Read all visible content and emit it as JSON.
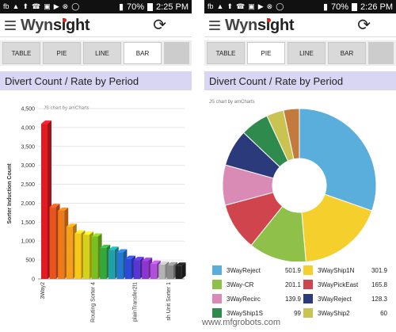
{
  "left": {
    "status": {
      "icons": [
        "fb",
        "▲",
        "⬆",
        "☎",
        "▣",
        "▶",
        "⊗",
        "◯"
      ],
      "battery": "70%",
      "time": "2:25 PM"
    },
    "logo": {
      "a": "Wyn",
      "b": "sight"
    },
    "tabs": [
      "TABLE",
      "PIE",
      "LINE",
      "BAR"
    ],
    "active_tab": "BAR",
    "title": "Divert Count / Rate by Period",
    "chart_data": {
      "type": "bar",
      "subtitle": "JS chart by amCharts",
      "ylabel": "Sorter Induction Count",
      "ylim": [
        0,
        4500
      ],
      "y_ticks": [
        "0",
        "500",
        "1,000",
        "1,500",
        "2,000",
        "2,500",
        "3,000",
        "3,500",
        "4,000",
        "4,500"
      ],
      "x_labels": [
        "3Way2",
        "Routing Sorter 4",
        "plainTransfer2l1",
        "sh Unit Sorter 1"
      ],
      "values": [
        4100,
        1900,
        1800,
        1380,
        1200,
        1170,
        1120,
        820,
        770,
        700,
        530,
        500,
        480,
        400,
        380,
        360,
        350
      ],
      "colors": [
        "#e01b24",
        "#e8551c",
        "#ee7b1a",
        "#f4a01a",
        "#f8c81c",
        "#d6d21c",
        "#7bbe1f",
        "#34a83a",
        "#1ea1a8",
        "#2577cf",
        "#2c4bd6",
        "#5a35d2",
        "#8e35d0",
        "#b24fd9",
        "#b3b3b3",
        "#8a8a8a",
        "#222222"
      ]
    }
  },
  "right": {
    "status": {
      "icons": [
        "fb",
        "▲",
        "⬆",
        "☎",
        "▣",
        "▶",
        "⊗",
        "◯"
      ],
      "battery": "70%",
      "time": "2:26 PM"
    },
    "logo": {
      "a": "Wyn",
      "b": "sight"
    },
    "tabs": [
      "TABLE",
      "PIE",
      "LINE",
      "BAR"
    ],
    "active_tab": "PIE",
    "title": "Divert Count / Rate by Period",
    "chart_data": {
      "type": "pie",
      "subtitle": "JS chart by amCharts",
      "slices": [
        {
          "name": "3WayReject",
          "value": 501.9,
          "color": "#5aaedc"
        },
        {
          "name": "3WayShip1N",
          "value": 301.9,
          "color": "#f5cf2c"
        },
        {
          "name": "3Way-CR",
          "value": 201.1,
          "color": "#8fc14a"
        },
        {
          "name": "3WayPickEast",
          "value": 165.8,
          "color": "#d0454d"
        },
        {
          "name": "3WayRecirc",
          "value": 139.9,
          "color": "#d98ab5"
        },
        {
          "name": "3WayReject",
          "value": 128.3,
          "color": "#2b3a7a"
        },
        {
          "name": "3WayShip1S",
          "value": 99,
          "color": "#2f8a4d"
        },
        {
          "name": "3WayShip2",
          "value": 60,
          "color": "#c9c452"
        },
        {
          "name": "",
          "value": 55,
          "color": "#c47a3d"
        }
      ]
    }
  },
  "watermark": "www.mfgrobots.com"
}
